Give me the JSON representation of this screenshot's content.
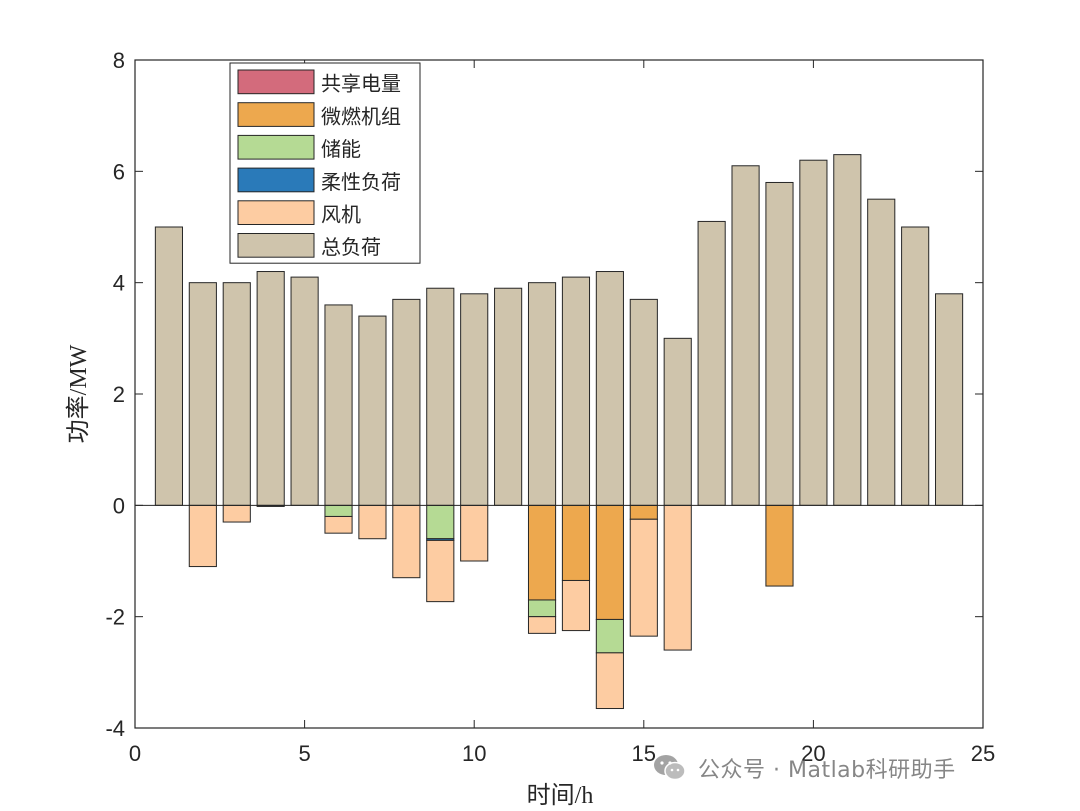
{
  "chart_data": {
    "type": "bar",
    "subtype": "stacked",
    "xlabel": "时间/h",
    "ylabel": "功率/MW",
    "xlim": [
      0,
      25
    ],
    "ylim": [
      -4,
      8
    ],
    "xticks": [
      "0",
      "5",
      "10",
      "15",
      "20",
      "25"
    ],
    "yticks": [
      "-4",
      "-2",
      "0",
      "2",
      "4",
      "6",
      "8"
    ],
    "legend_position": "top-left",
    "x": [
      1,
      2,
      3,
      4,
      5,
      6,
      7,
      8,
      9,
      10,
      11,
      12,
      13,
      14,
      15,
      16,
      17,
      18,
      19,
      20,
      21,
      22,
      23,
      24
    ],
    "series": [
      {
        "name": "共享电量",
        "color": "#d36b7c",
        "values": [
          0,
          0,
          0,
          0,
          0,
          0,
          0,
          0,
          0,
          0,
          0,
          0,
          0,
          0,
          0,
          0,
          0,
          0,
          0,
          0,
          0,
          0,
          0,
          0
        ]
      },
      {
        "name": "微燃机组",
        "color": "#eda84e",
        "values": [
          0,
          0,
          0,
          0,
          0,
          0,
          0,
          0,
          0,
          0,
          0,
          -1.7,
          -1.35,
          -2.05,
          -0.25,
          0,
          0,
          0,
          -1.45,
          0,
          0,
          0,
          0,
          0
        ]
      },
      {
        "name": "储能",
        "color": "#b5da94",
        "values": [
          0,
          0,
          0,
          0,
          0,
          -0.2,
          0,
          0,
          -0.6,
          0,
          0,
          -0.3,
          0,
          -0.6,
          0,
          0,
          0,
          0,
          0,
          0,
          0,
          0,
          0,
          0
        ]
      },
      {
        "name": "柔性负荷",
        "color": "#2a7ab9",
        "values": [
          0,
          0,
          0,
          -0.02,
          0,
          0,
          0,
          0,
          -0.03,
          0,
          0,
          0,
          0,
          0,
          0,
          0,
          0,
          0,
          0,
          0,
          0,
          0,
          0,
          0
        ]
      },
      {
        "name": "风机",
        "color": "#fdcca2",
        "values": [
          0,
          -1.1,
          -0.3,
          0,
          0,
          -0.3,
          -0.6,
          -1.3,
          -1.1,
          -1.0,
          0,
          -0.3,
          -0.9,
          -1.0,
          -2.1,
          -2.6,
          0,
          0,
          0,
          0,
          0,
          0,
          0,
          0
        ]
      },
      {
        "name": "总负荷",
        "color": "#cfc4ac",
        "values": [
          5.0,
          4.0,
          4.0,
          4.2,
          4.1,
          3.6,
          3.4,
          3.7,
          3.9,
          3.8,
          3.9,
          4.0,
          4.1,
          4.2,
          3.7,
          3.0,
          5.1,
          6.1,
          5.8,
          6.2,
          6.3,
          5.5,
          5.0,
          3.8
        ]
      }
    ]
  },
  "watermark": {
    "icon": "wechat-icon",
    "text": "公众号 · Matlab科研助手"
  }
}
